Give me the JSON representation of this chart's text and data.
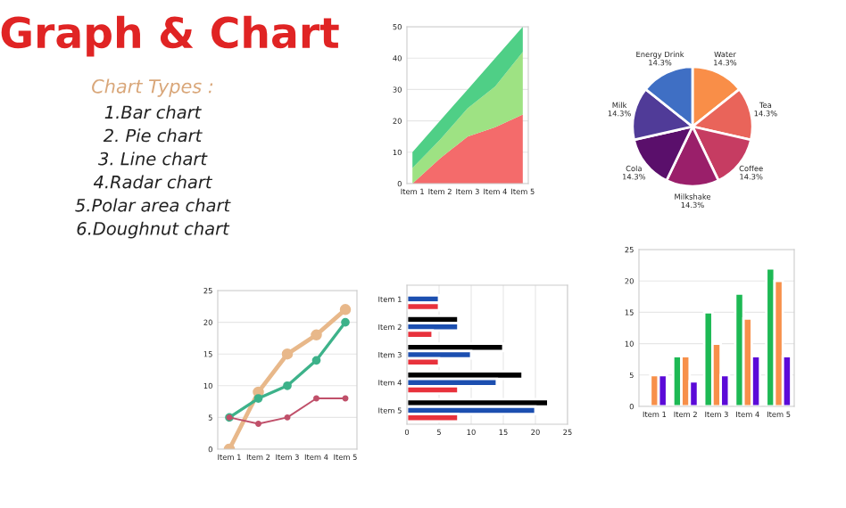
{
  "chart_data": [
    {
      "type": "other",
      "title": "Graph & Chart",
      "subtitle": "Chart Types :",
      "annotations": [
        "1.Bar chart",
        "2. Pie chart",
        "3. Line chart",
        "4.Radar chart",
        "5.Polar area chart",
        "6.Doughnut chart"
      ]
    },
    {
      "type": "area",
      "stacked": true,
      "categories": [
        "Item 1",
        "Item 2",
        "Item 3",
        "Item 4",
        "Item 5"
      ],
      "ylim": [
        0,
        50
      ],
      "yticks": [
        0,
        10,
        20,
        30,
        40,
        50
      ],
      "grid": "y",
      "series": [
        {
          "color": "#f46b6b",
          "values": [
            0,
            8,
            15,
            18,
            22
          ]
        },
        {
          "color": "#9ee283",
          "values": [
            5,
            6,
            9,
            13,
            20
          ]
        },
        {
          "color": "#4fcf86",
          "values": [
            5,
            6,
            6,
            9,
            8
          ]
        }
      ]
    },
    {
      "type": "pie",
      "categories": [
        "Water",
        "Tea",
        "Coffee",
        "Milkshake",
        "Cola",
        "Milk",
        "Energy Drink"
      ],
      "values": [
        14.3,
        14.3,
        14.3,
        14.3,
        14.3,
        14.3,
        14.3
      ],
      "value_labels": [
        "14.3%",
        "14.3%",
        "14.3%",
        "14.3%",
        "14.3%",
        "14.3%",
        "14.3%"
      ],
      "colors": [
        "#f98e48",
        "#e9645a",
        "#c63c62",
        "#9a1f6a",
        "#5a0f6b",
        "#503b98",
        "#3f6fc4"
      ]
    },
    {
      "type": "line",
      "categories": [
        "Item 1",
        "Item 2",
        "Item 3",
        "Item 4",
        "Item 5"
      ],
      "ylim": [
        0,
        25
      ],
      "yticks": [
        0,
        5,
        10,
        15,
        20,
        25
      ],
      "grid": "y",
      "marker": "circle",
      "series": [
        {
          "color": "#e8b88a",
          "values": [
            0,
            9,
            15,
            18,
            22
          ]
        },
        {
          "color": "#3db28a",
          "values": [
            5,
            8,
            10,
            14,
            20
          ]
        },
        {
          "color": "#c0506a",
          "values": [
            5,
            4,
            5,
            8,
            8
          ]
        }
      ]
    },
    {
      "type": "bar",
      "orientation": "horizontal",
      "categories": [
        "Item 1",
        "Item 2",
        "Item 3",
        "Item 4",
        "Item 5"
      ],
      "xlim": [
        0,
        25
      ],
      "xticks": [
        0,
        5,
        10,
        15,
        20,
        25
      ],
      "grid": "x",
      "series": [
        {
          "color": "#000000",
          "values": [
            null,
            8,
            15,
            18,
            22
          ]
        },
        {
          "color": "#1c4fb0",
          "values": [
            5,
            8,
            10,
            14,
            20
          ]
        },
        {
          "color": "#e8323c",
          "values": [
            5,
            4,
            5,
            8,
            8
          ]
        }
      ]
    },
    {
      "type": "bar",
      "categories": [
        "Item 1",
        "Item 2",
        "Item 3",
        "Item 4",
        "Item 5"
      ],
      "ylim": [
        0,
        25
      ],
      "yticks": [
        0,
        5,
        10,
        15,
        20,
        25
      ],
      "grid": "y",
      "series": [
        {
          "color": "#1db954",
          "values": [
            null,
            8,
            15,
            18,
            22
          ]
        },
        {
          "color": "#f7904a",
          "values": [
            5,
            8,
            10,
            14,
            20
          ]
        },
        {
          "color": "#5b0ad8",
          "values": [
            5,
            4,
            5,
            8,
            8
          ]
        }
      ]
    }
  ]
}
